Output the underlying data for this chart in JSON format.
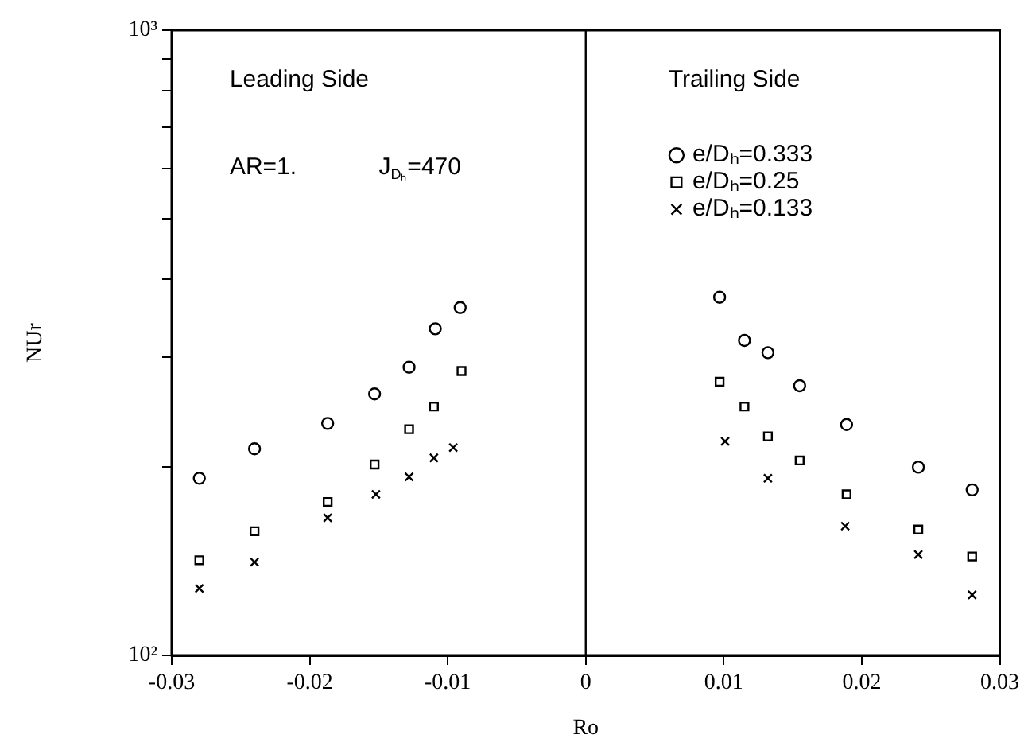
{
  "chart_data": {
    "type": "scatter",
    "xlabel": "Ro",
    "ylabel": "NUr",
    "log": "y",
    "grid": false,
    "legend": "top right",
    "xlim": [
      -0.03,
      0.03
    ],
    "xticks": [
      -0.03,
      -0.02,
      -0.01,
      0,
      0.01,
      0.02,
      0.03
    ],
    "ylim": [
      100,
      1000
    ],
    "yticks": [
      {
        "value": 100,
        "label": "10²"
      },
      {
        "value": 200,
        "label": null
      },
      {
        "value": 300,
        "label": null
      },
      {
        "value": 400,
        "label": null
      },
      {
        "value": 500,
        "label": null
      },
      {
        "value": 600,
        "label": null
      },
      {
        "value": 700,
        "label": null
      },
      {
        "value": 800,
        "label": null
      },
      {
        "value": 900,
        "label": null
      },
      {
        "value": 1000,
        "label": "10³"
      }
    ],
    "ref_lines": [
      {
        "axis": "x",
        "value": 0,
        "color": "#000000"
      }
    ],
    "annotations": [
      "Leading Side",
      "Trailing Side",
      "AR=1.",
      "J$_{Dₕ}$=470"
    ],
    "series": [
      {
        "name": "e/Dₕ=0.333",
        "color": "#000000",
        "marker": "circle",
        "x": [
          -0.028,
          -0.024,
          -0.0187,
          -0.0153,
          -0.0128,
          -0.0109,
          -0.0091,
          0.0097,
          0.0115,
          0.0132,
          0.0155,
          0.0189,
          0.0241,
          0.028
        ],
        "values": [
          192,
          214,
          235,
          262,
          289,
          333,
          360,
          374,
          319,
          305,
          270,
          234,
          200,
          184
        ]
      },
      {
        "name": "e/Dₕ=0.25",
        "color": "#000000",
        "marker": "square",
        "x": [
          -0.028,
          -0.024,
          -0.0187,
          -0.0153,
          -0.0128,
          -0.011,
          -0.009,
          0.0097,
          0.0115,
          0.0132,
          0.0155,
          0.0189,
          0.0241,
          0.028
        ],
        "values": [
          142,
          158,
          176,
          202,
          230,
          250,
          285,
          274,
          250,
          224,
          205,
          181,
          159,
          144
        ]
      },
      {
        "name": "e/Dₕ=0.133",
        "color": "#000000",
        "marker": "cross",
        "x": [
          -0.028,
          -0.024,
          -0.0187,
          -0.0152,
          -0.0128,
          -0.011,
          -0.0096,
          0.0101,
          0.0132,
          0.0188,
          0.0241,
          0.028
        ],
        "values": [
          128,
          141,
          166,
          181,
          193,
          207,
          215,
          220,
          192,
          161,
          145,
          125
        ]
      }
    ]
  }
}
